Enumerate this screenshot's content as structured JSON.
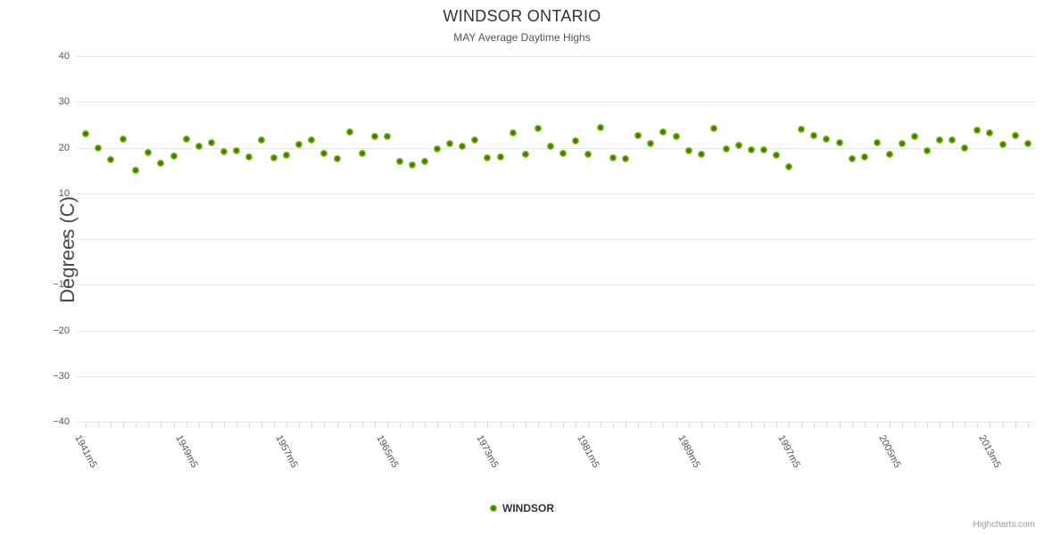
{
  "header": {
    "title": "WINDSOR ONTARIO",
    "subtitle": "MAY Average Daytime Highs"
  },
  "legend": {
    "label": "WINDSOR",
    "marker": "green-dot"
  },
  "credits": {
    "label": "Highcharts.com"
  },
  "colors": {
    "marker_edge": "#8bc41f",
    "marker_core": "#41790a",
    "grid": "#e6e6e6",
    "axis": "#ccd6eb"
  },
  "chart_data": {
    "type": "scatter",
    "title": "WINDSOR ONTARIO",
    "subtitle": "MAY Average Daytime Highs",
    "xlabel": "",
    "ylabel": "Degrees (C)",
    "ylim": [
      -40,
      40
    ],
    "ytick_step": 10,
    "ytick_labels": [
      "40",
      "30",
      "20",
      "10",
      "0",
      "−10",
      "−20",
      "−30",
      "−40"
    ],
    "grid": true,
    "legend_position": "bottom-center",
    "label_every": 8,
    "categories": [
      "1941m5",
      "1942m5",
      "1943m5",
      "1944m5",
      "1945m5",
      "1946m5",
      "1947m5",
      "1948m5",
      "1949m5",
      "1950m5",
      "1951m5",
      "1952m5",
      "1953m5",
      "1954m5",
      "1955m5",
      "1956m5",
      "1957m5",
      "1958m5",
      "1959m5",
      "1960m5",
      "1961m5",
      "1962m5",
      "1963m5",
      "1964m5",
      "1965m5",
      "1966m5",
      "1967m5",
      "1968m5",
      "1969m5",
      "1970m5",
      "1971m5",
      "1972m5",
      "1973m5",
      "1974m5",
      "1975m5",
      "1976m5",
      "1977m5",
      "1978m5",
      "1979m5",
      "1980m5",
      "1981m5",
      "1982m5",
      "1983m5",
      "1984m5",
      "1985m5",
      "1986m5",
      "1987m5",
      "1988m5",
      "1989m5",
      "1990m5",
      "1991m5",
      "1992m5",
      "1993m5",
      "1994m5",
      "1995m5",
      "1996m5",
      "1997m5",
      "1998m5",
      "1999m5",
      "2000m5",
      "2001m5",
      "2002m5",
      "2003m5",
      "2004m5",
      "2005m5",
      "2006m5",
      "2007m5",
      "2008m5",
      "2009m5",
      "2010m5",
      "2011m5",
      "2012m5",
      "2013m5",
      "2014m5",
      "2015m5",
      "2016m5"
    ],
    "series": [
      {
        "name": "WINDSOR",
        "color": "#8bc41f",
        "values": [
          23.0,
          20.0,
          17.4,
          21.9,
          15.0,
          19.0,
          16.6,
          18.1,
          21.8,
          20.3,
          21.1,
          19.2,
          19.4,
          18.0,
          21.7,
          17.8,
          18.3,
          20.7,
          21.6,
          18.7,
          17.5,
          23.4,
          18.8,
          22.5,
          22.5,
          16.9,
          16.1,
          17.0,
          19.8,
          20.9,
          20.3,
          21.7,
          17.7,
          17.9,
          23.2,
          18.5,
          24.2,
          20.3,
          18.8,
          21.5,
          18.5,
          24.3,
          17.7,
          17.6,
          22.7,
          20.9,
          23.4,
          22.5,
          19.3,
          18.5,
          24.2,
          19.8,
          20.5,
          19.6,
          19.6,
          18.3,
          15.8,
          24.0,
          22.6,
          21.8,
          21.1,
          17.5,
          18.0,
          21.1,
          18.5,
          20.9,
          22.4,
          19.3,
          21.6,
          21.7,
          20.0,
          23.9,
          23.2,
          20.6,
          22.6,
          20.9
        ]
      }
    ]
  }
}
